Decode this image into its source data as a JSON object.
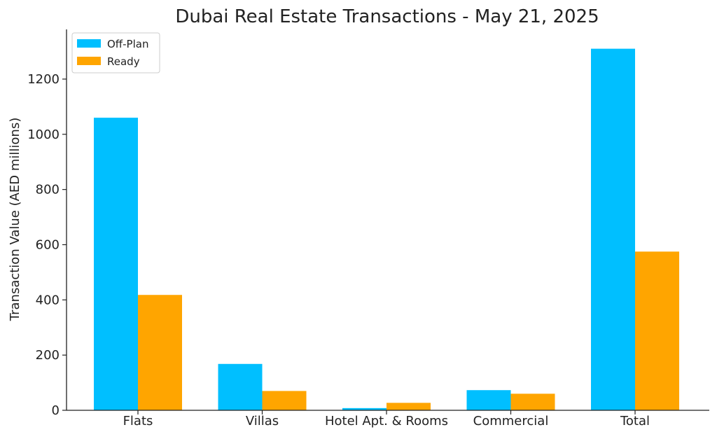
{
  "chart_data": {
    "type": "bar",
    "title": "Dubai Real Estate Transactions - May 21, 2025",
    "xlabel": "",
    "ylabel": "Transaction Value (AED millions)",
    "categories": [
      "Flats",
      "Villas",
      "Hotel Apt. & Rooms",
      "Commercial",
      "Total"
    ],
    "series": [
      {
        "name": "Off-Plan",
        "color": "#00BFFF",
        "values": [
          1060,
          168,
          8,
          73,
          1310
        ]
      },
      {
        "name": "Ready",
        "color": "#FFA500",
        "values": [
          418,
          70,
          27,
          60,
          575
        ]
      }
    ],
    "ylim": [
      0,
      1380
    ],
    "yticks": [
      0,
      200,
      400,
      600,
      800,
      1000,
      1200
    ],
    "grid": false,
    "legend_position": "top-left"
  }
}
